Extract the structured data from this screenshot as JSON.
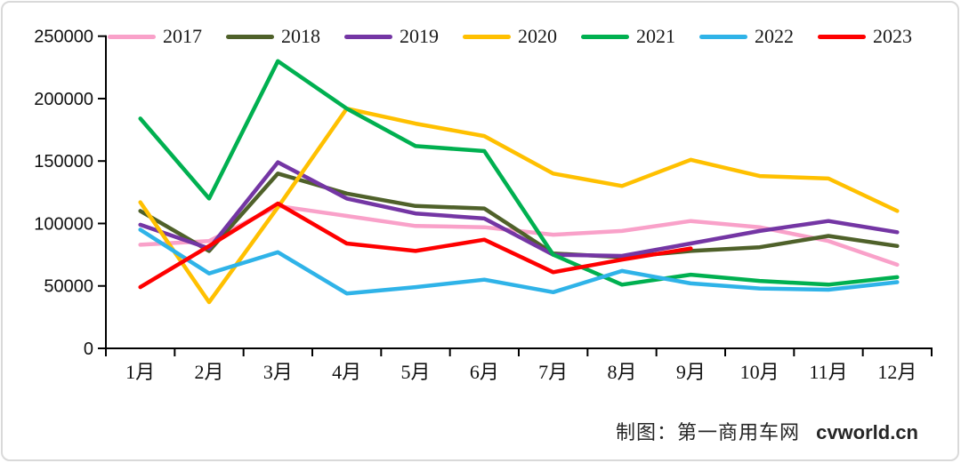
{
  "frame": {
    "background": "#ffffff",
    "border_color": "#d9d9d9"
  },
  "chart_data": {
    "type": "line",
    "title": "",
    "xlabel": "",
    "ylabel": "",
    "ylim": [
      0,
      250000
    ],
    "ytick_step": 50000,
    "ytick_labels": [
      "0",
      "50000",
      "100000",
      "150000",
      "200000",
      "250000"
    ],
    "grid": false,
    "legend_position": "top",
    "categories": [
      "1月",
      "2月",
      "3月",
      "4月",
      "5月",
      "6月",
      "7月",
      "8月",
      "9月",
      "10月",
      "11月",
      "12月"
    ],
    "series": [
      {
        "name": "2017",
        "color": "#F9A1C9",
        "values": [
          83000,
          86000,
          114000,
          106000,
          98000,
          97000,
          91000,
          94000,
          102000,
          97000,
          86000,
          67000
        ]
      },
      {
        "name": "2018",
        "color": "#4F612A",
        "values": [
          110000,
          78000,
          140000,
          124000,
          114000,
          112000,
          76000,
          73000,
          78000,
          81000,
          90000,
          82000
        ]
      },
      {
        "name": "2019",
        "color": "#7436A4",
        "values": [
          99000,
          80000,
          149000,
          120000,
          108000,
          104000,
          75000,
          74000,
          84000,
          94000,
          102000,
          93000
        ]
      },
      {
        "name": "2020",
        "color": "#FFC000",
        "values": [
          117000,
          37000,
          113000,
          192000,
          180000,
          170000,
          140000,
          130000,
          151000,
          138000,
          136000,
          110000
        ]
      },
      {
        "name": "2021",
        "color": "#00B050",
        "values": [
          184000,
          120000,
          230000,
          192000,
          162000,
          158000,
          75000,
          51000,
          59000,
          54000,
          51000,
          57000
        ]
      },
      {
        "name": "2022",
        "color": "#2FB3E8",
        "values": [
          95000,
          60000,
          77000,
          44000,
          49000,
          55000,
          45000,
          62000,
          52000,
          48000,
          47000,
          53000
        ]
      },
      {
        "name": "2023",
        "color": "#FE0000",
        "values": [
          49000,
          82000,
          116000,
          84000,
          78000,
          87000,
          61000,
          71000,
          80000,
          null,
          null,
          null
        ]
      }
    ]
  },
  "caption": {
    "maker": "制图：第一商用车网",
    "site": "cvworld.cn"
  }
}
